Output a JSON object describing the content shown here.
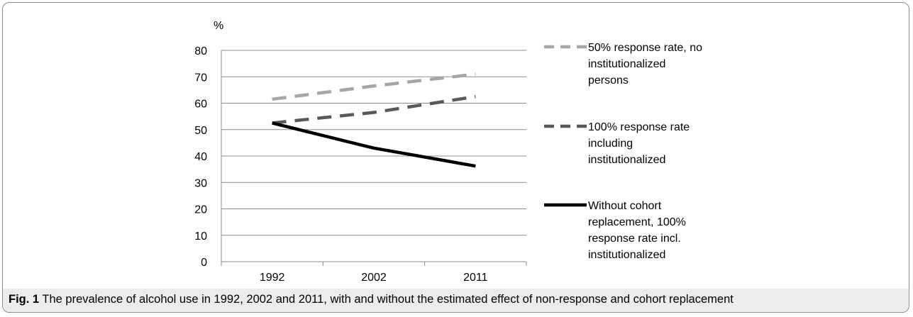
{
  "chart_data": {
    "type": "line",
    "ylabel": "%",
    "x": [
      "1992",
      "2002",
      "2011"
    ],
    "ylim": [
      0,
      80
    ],
    "yticks": [
      0,
      10,
      20,
      30,
      40,
      50,
      60,
      70,
      80
    ],
    "grid": true,
    "legend_position": "right",
    "series": [
      {
        "name": "50% response rate, no institutionalized persons",
        "name_lines": [
          "50% response rate, no",
          "institutionalized",
          "persons"
        ],
        "values": [
          61.5,
          66.5,
          71
        ],
        "color": "#a6a6a6",
        "style": "dashed"
      },
      {
        "name": "100% response rate including institutionalized",
        "name_lines": [
          "100% response rate",
          "including",
          "institutionalized"
        ],
        "values": [
          52.5,
          56.5,
          62.5
        ],
        "color": "#595959",
        "style": "dashed"
      },
      {
        "name": "Without cohort replacement, 100% response rate incl. institutionalized",
        "name_lines": [
          "Without cohort",
          "replacement, 100%",
          "response rate incl.",
          "institutionalized"
        ],
        "values": [
          52.5,
          43,
          36.2
        ],
        "color": "#000000",
        "style": "solid"
      }
    ]
  },
  "caption": {
    "label": "Fig. 1",
    "text": " The prevalence of alcohol use in 1992, 2002 and 2011, with and without the estimated effect of non-response and cohort replacement"
  }
}
